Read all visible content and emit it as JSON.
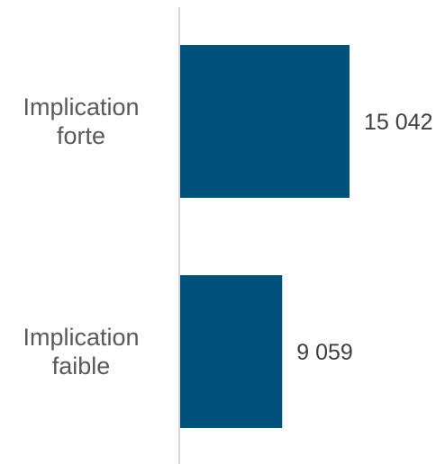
{
  "chart_data": {
    "type": "bar",
    "orientation": "horizontal",
    "categories": [
      [
        "Implication",
        "forte"
      ],
      [
        "Implication",
        "faible"
      ]
    ],
    "values": [
      15042,
      9059
    ],
    "value_labels": [
      "15 042",
      "9 059"
    ],
    "xlim": [
      0,
      24000
    ],
    "title": "",
    "xlabel": "",
    "ylabel": "",
    "grid": false,
    "legend": "none",
    "colors": {
      "bar": "#00527A",
      "axis": "#D9D9D9",
      "category_text": "#595959",
      "value_text": "#404040"
    }
  }
}
